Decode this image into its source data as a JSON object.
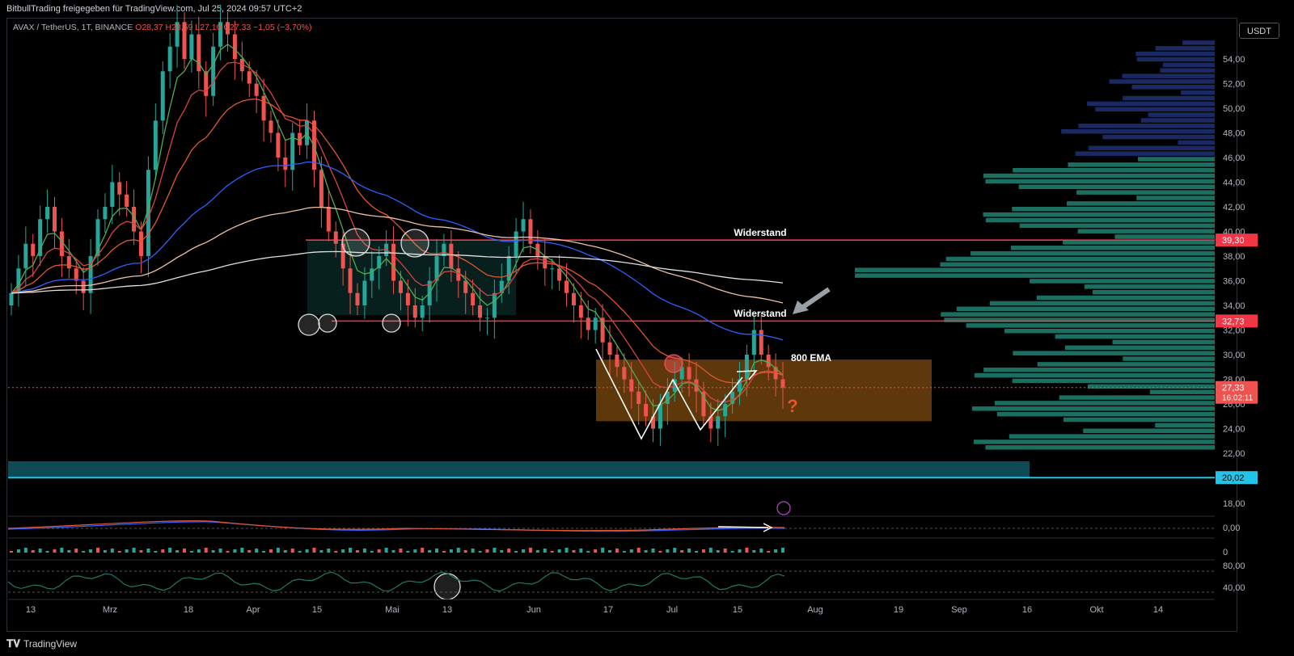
{
  "header": {
    "publisher": "BitbullTrading freigegeben für TradingView.com, Jul 25, 2024 09:57 UTC+2"
  },
  "legend": {
    "symbol": "AVAX / TetherUS, 1T, BINANCE",
    "ohlc": "O28,37 H28,59 L27,10 C27,33 −1,05 (−3,70%)"
  },
  "currency_button": "USDT",
  "footer": {
    "brand": "TradingView"
  },
  "colors": {
    "background": "#000000",
    "bull": "#26a69a",
    "bear": "#ef5350",
    "resistance": "#f23645",
    "zone": "#f7931a",
    "support_band": "#0e4b55",
    "support_line": "#22c5e8",
    "vp_upper": "#1e2e6e",
    "vp_lower": "#1f7a6a",
    "ema_blue": "#2962ff",
    "ema_orange": "#e4572e",
    "ema_green": "#4caf50",
    "ema_red": "#d84343",
    "ema_white": "#e0e0e0",
    "ema_peach": "#f0c0a0"
  },
  "chart_data": {
    "type": "candlestick",
    "title": "",
    "xlabel": "",
    "ylabel": "",
    "x_ticks": [
      "13",
      "Mrz",
      "18",
      "Apr",
      "15",
      "Mai",
      "13",
      "Jun",
      "17",
      "Jul",
      "15",
      "Aug",
      "19",
      "Sep",
      "16",
      "Okt",
      "14"
    ],
    "y_ticks": [
      "54,00",
      "52,00",
      "50,00",
      "48,00",
      "46,00",
      "44,00",
      "42,00",
      "40,00",
      "38,00",
      "36,00",
      "34,00",
      "32,00",
      "30,00",
      "28,00",
      "26,00",
      "24,00",
      "22,00",
      "18,00"
    ],
    "ylim": [
      17.5,
      56.5
    ],
    "price_labels": [
      {
        "value": 39.3,
        "text": "39,30",
        "kind": "resistance"
      },
      {
        "value": 32.73,
        "text": "32,73",
        "kind": "resistance"
      },
      {
        "value": 27.33,
        "text": "27,33",
        "kind": "last"
      },
      {
        "value": 20.02,
        "text": "20,02",
        "kind": "support"
      }
    ],
    "last_price_countdown": "16:02:11",
    "resistance_levels": [
      39.3,
      32.73
    ],
    "support_level": 20.02,
    "annotations": [
      {
        "text": "Widerstand",
        "value": 39.3
      },
      {
        "text": "Widerstand",
        "value": 32.73
      },
      {
        "text": "800 EMA",
        "value": 29.6
      },
      {
        "text": "?",
        "value": 25.8
      }
    ],
    "zone": {
      "low": 24.6,
      "high": 29.6
    },
    "oscillator_ticks": [
      "0,00",
      "0",
      "80,00",
      "40,00"
    ],
    "candles_close": [
      35,
      37,
      39,
      38,
      41,
      42,
      40,
      38,
      37,
      36,
      35,
      38,
      41,
      42,
      44,
      43,
      42,
      40,
      38,
      45,
      49,
      53,
      55,
      57,
      54,
      56,
      53,
      51,
      55,
      57,
      56,
      54,
      53,
      52,
      51,
      49,
      48,
      46,
      45,
      48,
      47,
      49,
      45,
      42,
      40,
      39,
      37,
      35,
      34,
      36,
      37,
      38,
      39,
      36,
      35,
      34,
      33,
      34,
      36,
      38,
      39,
      37,
      36,
      35,
      34,
      33,
      33,
      35,
      36,
      38,
      40,
      41,
      39,
      38,
      37,
      37,
      36,
      35,
      34,
      33,
      32,
      33,
      31,
      30,
      29,
      28,
      27,
      26,
      25,
      24,
      26,
      27,
      28,
      29,
      28,
      27,
      25,
      24,
      25,
      26,
      27,
      28,
      30,
      32,
      30,
      29,
      28,
      27.33
    ]
  }
}
